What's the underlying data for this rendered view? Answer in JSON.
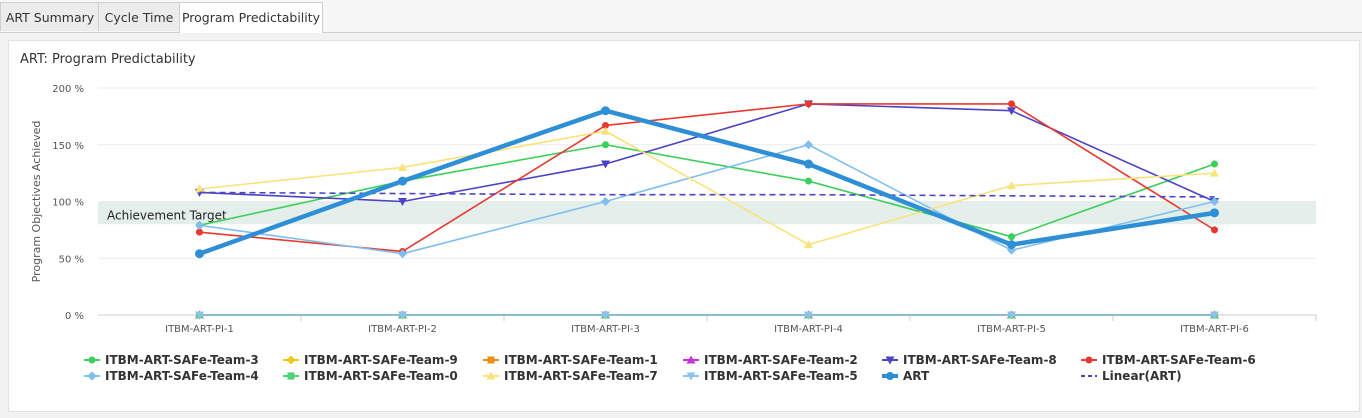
{
  "tabs": [
    {
      "label": "ART Summary",
      "active": false
    },
    {
      "label": "Cycle Time",
      "active": false
    },
    {
      "label": "Program Predictability",
      "active": true
    }
  ],
  "panel_title": "ART: Program Predictability",
  "chart_data": {
    "type": "line",
    "ylabel": "Program Objectives Achieved",
    "xlabel": "",
    "ylim": [
      0,
      200
    ],
    "yticks": [
      "0 %",
      "50 %",
      "100 %",
      "150 %",
      "200 %"
    ],
    "categories": [
      "ITBM-ART-PI-1",
      "ITBM-ART-PI-2",
      "ITBM-ART-PI-3",
      "ITBM-ART-PI-4",
      "ITBM-ART-PI-5",
      "ITBM-ART-PI-6"
    ],
    "band": {
      "label": "Achievement Target",
      "from": 80,
      "to": 100
    },
    "grid": true,
    "legend_position": "bottom",
    "series": [
      {
        "name": "ITBM-ART-SAFe-Team-3",
        "color": "#3ccf5b",
        "marker": "circle",
        "values": [
          79,
          118,
          150,
          118,
          69,
          133
        ]
      },
      {
        "name": "ITBM-ART-SAFe-Team-9",
        "color": "#f2c61f",
        "marker": "diamond",
        "values": [
          0,
          0,
          0,
          0,
          0,
          0
        ]
      },
      {
        "name": "ITBM-ART-SAFe-Team-1",
        "color": "#f08c1a",
        "marker": "square",
        "values": [
          0,
          0,
          0,
          0,
          0,
          0
        ]
      },
      {
        "name": "ITBM-ART-SAFe-Team-2",
        "color": "#c832d8",
        "marker": "triangle",
        "values": [
          0,
          0,
          0,
          0,
          0,
          0
        ]
      },
      {
        "name": "ITBM-ART-SAFe-Team-8",
        "color": "#4b45c6",
        "marker": "triangle-down",
        "values": [
          108,
          100,
          133,
          186,
          180,
          100
        ]
      },
      {
        "name": "ITBM-ART-SAFe-Team-6",
        "color": "#e8392f",
        "marker": "circle",
        "values": [
          73,
          56,
          167,
          186,
          186,
          75
        ]
      },
      {
        "name": "ITBM-ART-SAFe-Team-4",
        "color": "#7fbfef",
        "marker": "diamond",
        "values": [
          79,
          54,
          100,
          150,
          57,
          100
        ]
      },
      {
        "name": "ITBM-ART-SAFe-Team-0",
        "color": "#4fd17a",
        "marker": "square",
        "values": [
          0,
          0,
          0,
          0,
          0,
          0
        ]
      },
      {
        "name": "ITBM-ART-SAFe-Team-7",
        "color": "#fae27a",
        "marker": "triangle",
        "values": [
          111,
          130,
          162,
          62,
          114,
          125
        ]
      },
      {
        "name": "ITBM-ART-SAFe-Team-5",
        "color": "#8dc2ee",
        "marker": "triangle-down",
        "values": [
          0,
          0,
          0,
          0,
          0,
          0
        ]
      },
      {
        "name": "ART",
        "color": "#2e8fd6",
        "marker": "circle",
        "thick": true,
        "values": [
          54,
          118,
          180,
          133,
          62,
          90
        ]
      },
      {
        "name": "Linear(ART)",
        "color": "#4b45c6",
        "marker": "none",
        "dashed": true,
        "values": [
          108,
          107,
          106,
          106,
          105,
          104
        ]
      }
    ]
  }
}
